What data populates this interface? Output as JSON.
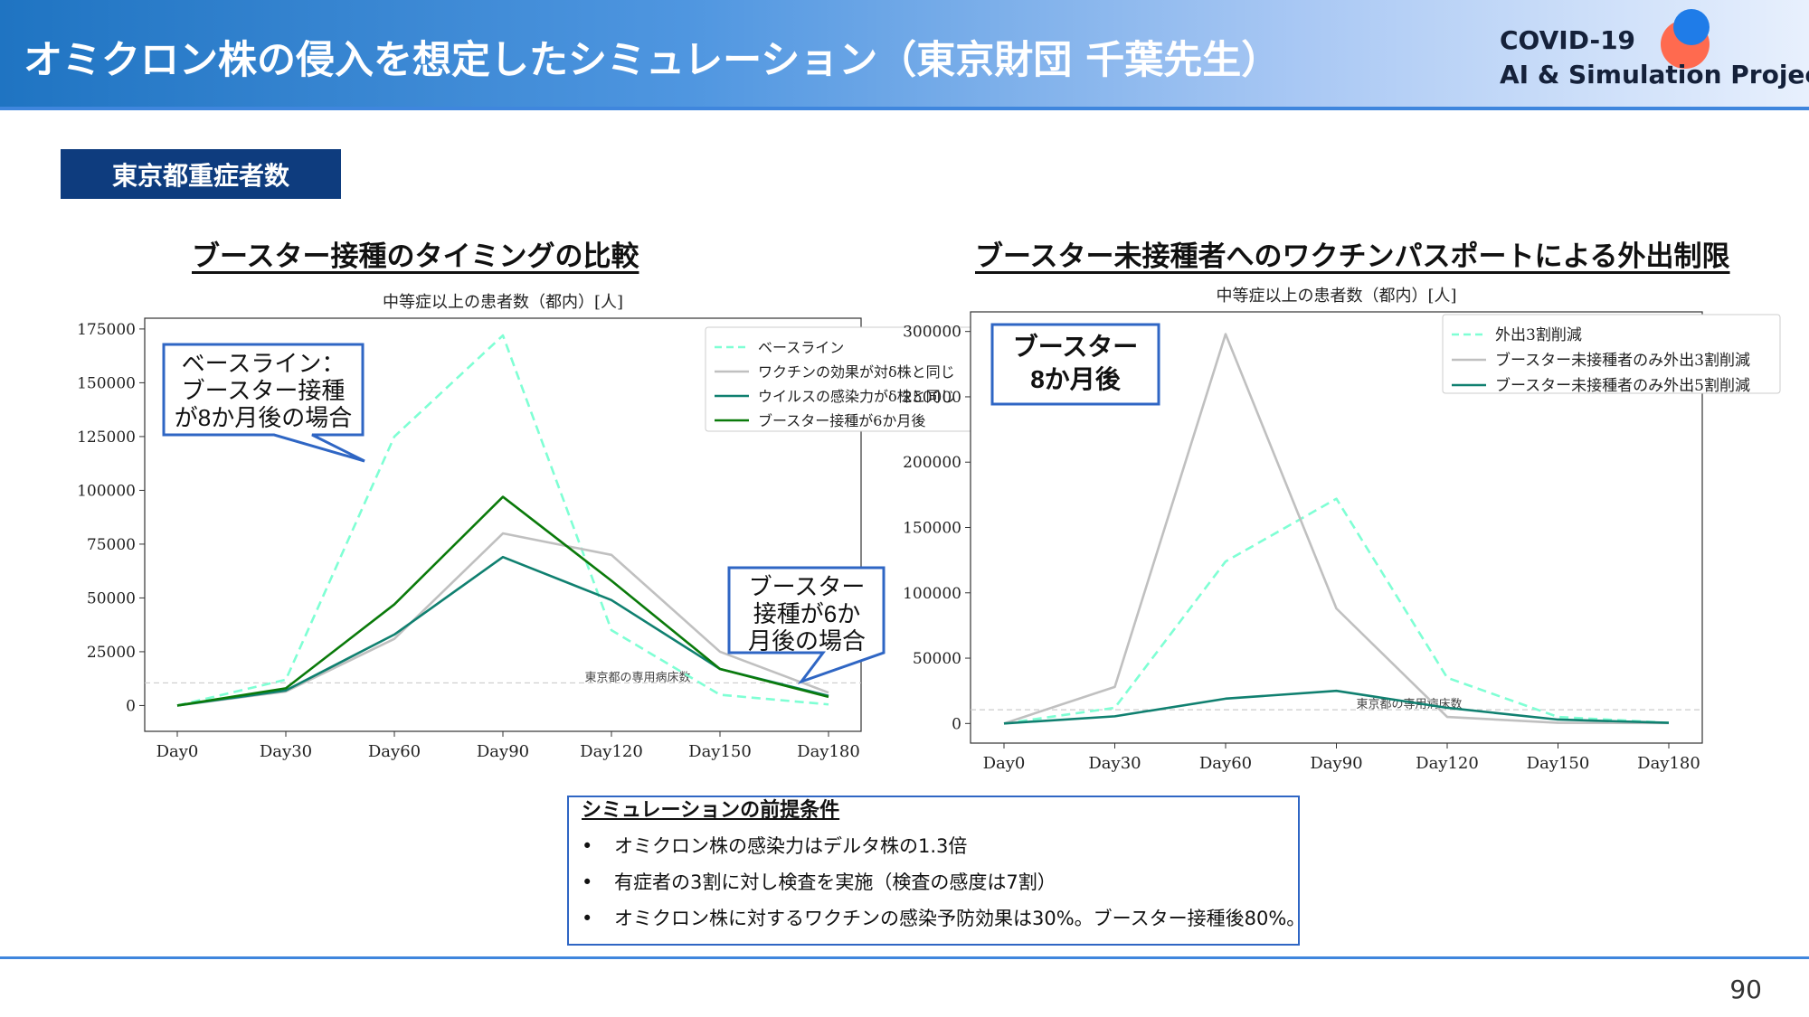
{
  "header": {
    "title": "オミクロン株の侵入を想定したシミュレーション（東京財団 千葉先生）",
    "logo_line1": "COVID-19",
    "logo_line2": "AI & Simulation Project"
  },
  "section_tag": "東京都重症者数",
  "left_heading": "ブースター接種のタイミングの比較",
  "right_heading": "ブースター未接種者へのワクチンパスポートによる外出制限",
  "callouts": {
    "baseline": [
      "ベースライン：",
      "ブースター接種",
      "が8か月後の場合"
    ],
    "six_month": [
      "ブースター",
      "接種が6か",
      "月後の場合"
    ],
    "eight_month_box": [
      "ブースター",
      "8か月後"
    ]
  },
  "chart_data": [
    {
      "type": "line",
      "title": "中等症以上の患者数（都内）[人]",
      "x": [
        "Day0",
        "Day30",
        "Day60",
        "Day90",
        "Day120",
        "Day150",
        "Day180"
      ],
      "ylim": [
        -12000,
        180000
      ],
      "yticks": [
        "0",
        "25000",
        "50000",
        "75000",
        "100000",
        "125000",
        "150000",
        "175000"
      ],
      "legend_position": "top-right",
      "reference_line": {
        "value": 10500,
        "label": "東京都の専用病床数"
      },
      "series": [
        {
          "name": "ベースライン",
          "color": "#7fffd4",
          "dashed": true,
          "values": [
            0,
            12000,
            125000,
            172000,
            35000,
            5000,
            500
          ]
        },
        {
          "name": "ワクチンの効果が対δ株と同じ",
          "color": "#c0c0c0",
          "dashed": false,
          "values": [
            0,
            6500,
            31000,
            80000,
            70000,
            25000,
            6000
          ]
        },
        {
          "name": "ウイルスの感染力がδ株と同じ",
          "color": "#108070",
          "dashed": false,
          "values": [
            0,
            7000,
            33000,
            69000,
            49000,
            17000,
            4500
          ]
        },
        {
          "name": "ブースター接種が6か月後",
          "color": "#0a7a0a",
          "dashed": false,
          "values": [
            0,
            8000,
            47000,
            97000,
            58000,
            17000,
            4000
          ]
        }
      ]
    },
    {
      "type": "line",
      "title": "中等症以上の患者数（都内）[人]",
      "x": [
        "Day0",
        "Day30",
        "Day60",
        "Day90",
        "Day120",
        "Day150",
        "Day180"
      ],
      "ylim": [
        -15000,
        315000
      ],
      "yticks": [
        "0",
        "50000",
        "100000",
        "150000",
        "200000",
        "250000",
        "300000"
      ],
      "legend_position": "top-right",
      "reference_line": {
        "value": 10500,
        "label": "東京都の専用病床数"
      },
      "series": [
        {
          "name": "外出3割削減",
          "color": "#7fffd4",
          "dashed": true,
          "values": [
            0,
            12000,
            124000,
            172000,
            35000,
            5000,
            500
          ]
        },
        {
          "name": "ブースター未接種者のみ外出3割削減",
          "color": "#c0c0c0",
          "dashed": false,
          "values": [
            0,
            28000,
            298000,
            88000,
            5000,
            500,
            300
          ]
        },
        {
          "name": "ブースター未接種者のみ外出5割削減",
          "color": "#108070",
          "dashed": false,
          "values": [
            0,
            5500,
            19000,
            25000,
            12000,
            3000,
            500
          ]
        }
      ]
    }
  ],
  "conditions": {
    "title": "シミュレーションの前提条件",
    "bullet": "•",
    "items": [
      "オミクロン株の感染力はデルタ株の1.3倍",
      "有症者の3割に対し検査を実施（検査の感度は7割）",
      "オミクロン株に対するワクチンの感染予防効果は30%。ブースター接種後80%。"
    ]
  },
  "page_number": "90"
}
